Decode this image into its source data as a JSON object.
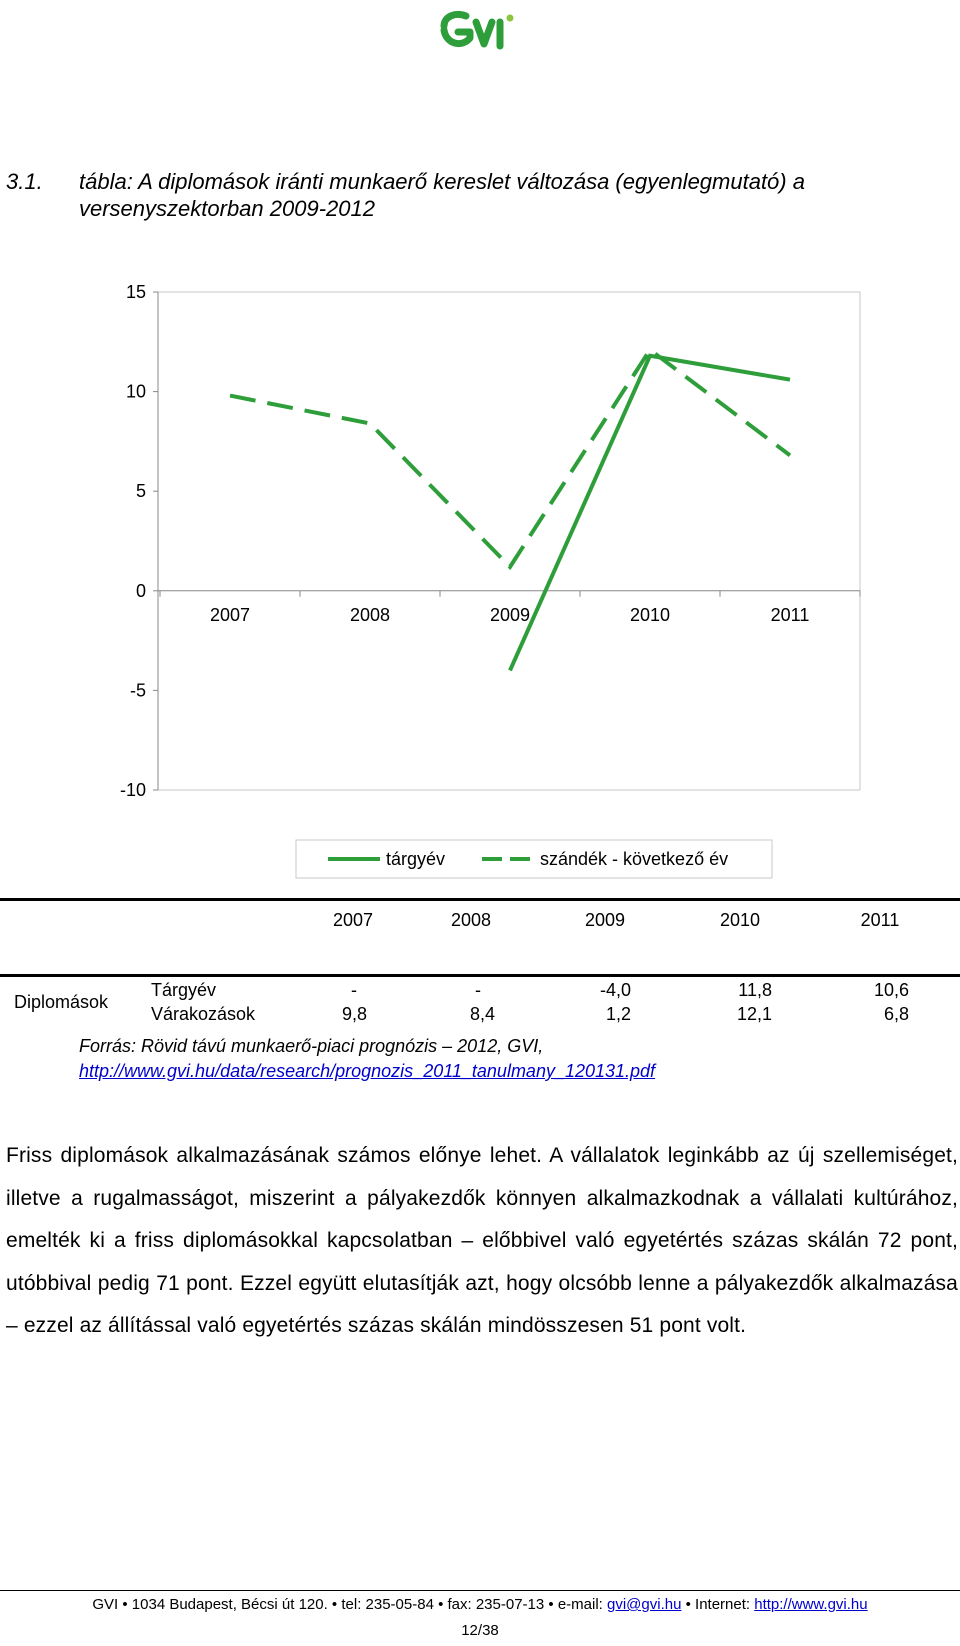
{
  "caption": {
    "number": "3.1.",
    "line1": "tábla: A diplomások iránti munkaerő kereslet változása (egyenlegmutató) a",
    "line2": "versenyszektorban 2009-2012"
  },
  "chart_data": {
    "type": "line",
    "categories": [
      "2007",
      "2008",
      "2009",
      "2010",
      "2011"
    ],
    "ylim": [
      -10,
      15
    ],
    "yticks": [
      "15",
      "10",
      "5",
      "0",
      "-5",
      "-10"
    ],
    "series": [
      {
        "name": "tárgyév",
        "values": [
          null,
          null,
          -4.0,
          11.8,
          10.6
        ],
        "style": "solid",
        "color": "#2e9e3a"
      },
      {
        "name": "szándék - következő év",
        "values": [
          9.8,
          8.4,
          1.2,
          12.1,
          6.8
        ],
        "style": "dashed",
        "color": "#2e9e3a"
      }
    ],
    "legend_position": "bottom",
    "grid": false
  },
  "table": {
    "years": [
      "2007",
      "2008",
      "2009",
      "2010",
      "2011"
    ],
    "group_label": "Diplomások",
    "rows": [
      {
        "label": "Tárgyév",
        "values": [
          "-",
          "-",
          "-4,0",
          "11,8",
          "10,6"
        ]
      },
      {
        "label": "Várakozások",
        "values": [
          "9,8",
          "8,4",
          "1,2",
          "12,1",
          "6,8"
        ]
      }
    ]
  },
  "source": {
    "text": "Forrás: Rövid távú munkaerő-piaci prognózis – 2012, GVI,",
    "link": "http://www.gvi.hu/data/research/prognozis_2011_tanulmany_120131.pdf"
  },
  "paragraph": "Friss diplomások alkalmazásának számos előnye lehet. A vállalatok leginkább az új szellemiséget, illetve a rugalmasságot, miszerint a pályakezdők könnyen alkalmazkodnak a vállalati kultúrához, emelték ki a friss diplomásokkal kapcsolatban – előbbivel való egyetértés százas skálán 72 pont, utóbbival pedig 71 pont. Ezzel együtt elutasítják azt, hogy olcsóbb lenne a pályakezdők alkalmazása – ezzel az állítással való egyetértés százas skálán mindösszesen 51 pont volt.",
  "footer": {
    "text_before": "GVI • 1034 Budapest, Bécsi út 120. • tel: 235-05-84 • fax: 235-07-13 • e-mail: ",
    "email": "gvi@gvi.hu",
    "text_mid": " • Internet: ",
    "web": "http://www.gvi.hu",
    "page": "12/38"
  },
  "colors": {
    "line": "#2e9e3a",
    "link": "#0000cc",
    "logo": "#2e9e3a"
  }
}
